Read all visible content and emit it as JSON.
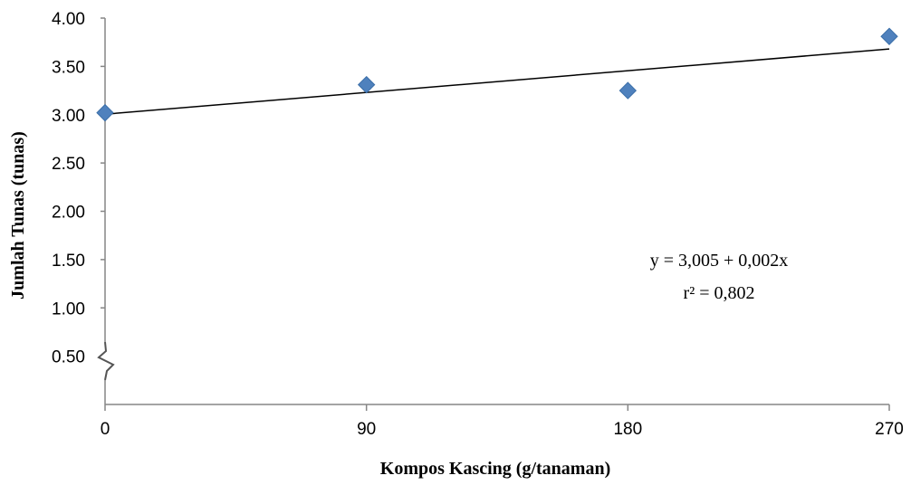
{
  "chart_data": {
    "type": "scatter",
    "xlabel": "Kompos Kascing (g/tanaman)",
    "ylabel": "Jumlah Tunas (tunas)",
    "x_ticks": [
      "0",
      "90",
      "180",
      "270"
    ],
    "y_ticks": [
      "0.50",
      "1.00",
      "1.50",
      "2.00",
      "2.50",
      "3.00",
      "3.50",
      "4.00"
    ],
    "xlim": [
      0,
      270
    ],
    "ylim": [
      0,
      4.0
    ],
    "axis_break": true,
    "grid": false,
    "points": [
      {
        "x": 0,
        "y": 3.02
      },
      {
        "x": 90,
        "y": 3.31
      },
      {
        "x": 180,
        "y": 3.25
      },
      {
        "x": 270,
        "y": 3.81
      }
    ],
    "trendline": {
      "intercept": 3.005,
      "slope": 0.0025
    },
    "annotation": {
      "equation": "y = 3,005 + 0,002x",
      "r_squared": "r² = 0,802"
    },
    "colors": {
      "marker": "#4f81bd",
      "marker_edge": "#3a6ea8",
      "trendline": "#000000",
      "axis": "#868686"
    }
  }
}
